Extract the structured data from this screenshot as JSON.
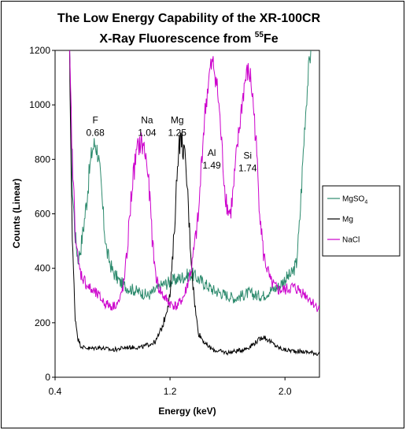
{
  "chart_data": {
    "type": "line",
    "title_line1": "The Low Energy Capability of the XR-100CR",
    "title_line2_prefix": "X-Ray Fluorescence from ",
    "title_line2_sup": "55",
    "title_line2_suffix": "Fe",
    "xlabel": "Energy (keV)",
    "ylabel": "Counts (Linear)",
    "xlim": [
      0.4,
      2.24
    ],
    "ylim": [
      0,
      1200
    ],
    "xticks": [
      0.4,
      1.2,
      2.0
    ],
    "xtick_labels": [
      "0.4",
      "1.2",
      "2.0"
    ],
    "yticks": [
      0,
      200,
      400,
      600,
      800,
      1000,
      1200
    ],
    "ytick_labels": [
      "0",
      "200",
      "400",
      "600",
      "800",
      "1000",
      "1200"
    ],
    "grid": false,
    "legend_position": "right",
    "series": [
      {
        "name": "MgSO4",
        "legend_main": "MgSO",
        "legend_sub": "4",
        "color": "#2e8b6e",
        "x": [
          0.5,
          0.52,
          0.54,
          0.56,
          0.58,
          0.6,
          0.62,
          0.64,
          0.66,
          0.68,
          0.7,
          0.72,
          0.74,
          0.76,
          0.8,
          0.85,
          0.9,
          0.95,
          1.0,
          1.05,
          1.1,
          1.15,
          1.2,
          1.25,
          1.3,
          1.35,
          1.4,
          1.45,
          1.5,
          1.55,
          1.6,
          1.65,
          1.7,
          1.75,
          1.8,
          1.85,
          1.9,
          1.95,
          2.0,
          2.05,
          2.08,
          2.1,
          2.12,
          2.14,
          2.16,
          2.18
        ],
        "y": [
          1200,
          700,
          520,
          430,
          480,
          560,
          650,
          760,
          840,
          860,
          820,
          700,
          560,
          460,
          390,
          350,
          330,
          320,
          310,
          300,
          320,
          340,
          350,
          360,
          370,
          380,
          360,
          340,
          320,
          310,
          300,
          290,
          300,
          310,
          300,
          300,
          320,
          330,
          360,
          380,
          420,
          550,
          750,
          950,
          1100,
          1200
        ]
      },
      {
        "name": "Mg",
        "legend_main": "Mg",
        "legend_sub": "",
        "color": "#000000",
        "x": [
          0.5,
          0.52,
          0.54,
          0.56,
          0.58,
          0.6,
          0.65,
          0.7,
          0.8,
          0.9,
          1.0,
          1.05,
          1.1,
          1.15,
          1.2,
          1.22,
          1.24,
          1.26,
          1.28,
          1.3,
          1.32,
          1.34,
          1.36,
          1.38,
          1.4,
          1.45,
          1.5,
          1.55,
          1.6,
          1.65,
          1.7,
          1.75,
          1.8,
          1.85,
          1.9,
          1.95,
          2.0,
          2.1,
          2.2,
          2.24
        ],
        "y": [
          1200,
          500,
          220,
          140,
          115,
          110,
          105,
          110,
          100,
          110,
          110,
          120,
          130,
          190,
          300,
          450,
          650,
          860,
          870,
          820,
          700,
          500,
          340,
          230,
          160,
          120,
          100,
          95,
          90,
          95,
          100,
          110,
          130,
          150,
          130,
          110,
          100,
          95,
          90,
          85
        ]
      },
      {
        "name": "NaCl",
        "legend_main": "NaCl",
        "legend_sub": "",
        "color": "#cc00cc",
        "x": [
          0.5,
          0.52,
          0.54,
          0.56,
          0.58,
          0.6,
          0.62,
          0.65,
          0.7,
          0.75,
          0.8,
          0.85,
          0.88,
          0.9,
          0.92,
          0.94,
          0.96,
          0.98,
          1.0,
          1.02,
          1.04,
          1.06,
          1.08,
          1.1,
          1.12,
          1.15,
          1.2,
          1.25,
          1.3,
          1.35,
          1.4,
          1.42,
          1.44,
          1.46,
          1.48,
          1.5,
          1.52,
          1.54,
          1.56,
          1.58,
          1.6,
          1.62,
          1.64,
          1.66,
          1.68,
          1.7,
          1.72,
          1.74,
          1.76,
          1.78,
          1.8,
          1.82,
          1.85,
          1.9,
          1.95,
          2.0,
          2.05,
          2.1,
          2.15,
          2.2,
          2.24
        ],
        "y": [
          1200,
          800,
          550,
          420,
          380,
          360,
          340,
          320,
          300,
          270,
          260,
          280,
          350,
          450,
          600,
          720,
          800,
          850,
          860,
          840,
          780,
          650,
          480,
          380,
          330,
          300,
          270,
          260,
          300,
          400,
          600,
          800,
          950,
          1050,
          1130,
          1150,
          1100,
          1000,
          850,
          700,
          620,
          600,
          680,
          800,
          900,
          1000,
          1080,
          1120,
          1100,
          1000,
          850,
          650,
          450,
          350,
          320,
          320,
          330,
          320,
          300,
          270,
          250
        ]
      }
    ],
    "annotations": [
      {
        "line1": "F",
        "line2": "0.68",
        "x": 0.68,
        "y": 880
      },
      {
        "line1": "Na",
        "line2": "1.04",
        "x": 1.04,
        "y": 880
      },
      {
        "line1": "Mg",
        "line2": "1.25",
        "x": 1.25,
        "y": 880
      },
      {
        "line1": "Al",
        "line2": "1.49",
        "x": 1.49,
        "y": 760
      },
      {
        "line1": "Si",
        "line2": "1.74",
        "x": 1.74,
        "y": 750
      }
    ]
  }
}
